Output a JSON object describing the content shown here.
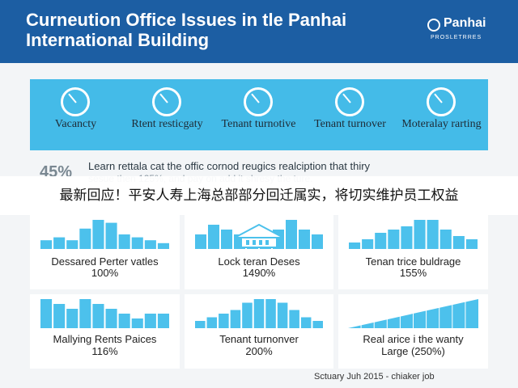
{
  "header": {
    "title": "Curneution Office Issues in tle Panhai International Building",
    "logo_brand": "Panhai",
    "logo_sub": "PROSLETRRES"
  },
  "stats": [
    {
      "label": "Vacancty",
      "icon": "pie-chart-icon"
    },
    {
      "label": "Rtent resticgaty",
      "icon": "pie-chart-icon"
    },
    {
      "label": "Tenant turnotive",
      "icon": "pie-chart-icon"
    },
    {
      "label": "Tenant turnover",
      "icon": "pie-chart-icon"
    },
    {
      "label": "Moteralay rarting",
      "icon": "pie-chart-icon"
    }
  ],
  "overview": {
    "percent": "45%",
    "line1": "Learn rettala cat the offic cornod reugics realciption that thiry",
    "line2": "sesue then 125%, and pay on add it shresy the ture."
  },
  "banner": "最新回应！平安人寿上海总部部分回迁属实，将切实维护员工权益",
  "panels": [
    {
      "title": "Dessared Perter vatles",
      "value": "100%"
    },
    {
      "title": "Lock teran Deses",
      "value": "1490%"
    },
    {
      "title": "Tenan trice buldrage",
      "value": "155%"
    },
    {
      "title": "Mallying Rents Paices",
      "value": "116%"
    },
    {
      "title": "Tenant turnonver",
      "value": "200%"
    },
    {
      "title": "Real arice i the wanty",
      "value": "Large (250%)"
    }
  ],
  "footer": "Sctuary Juh 2015 - chiaker job",
  "colors": {
    "header": "#1c5ea3",
    "accent": "#44bbe8",
    "bar": "#4cc1ec"
  },
  "chart_data": [
    {
      "type": "bar",
      "values": [
        3,
        4,
        3,
        7,
        10,
        9,
        5,
        4,
        3,
        2
      ]
    },
    {
      "type": "bar",
      "values": [
        3,
        5,
        4,
        3,
        2,
        3,
        4,
        6,
        4,
        3
      ]
    },
    {
      "type": "bar",
      "values": [
        2,
        3,
        5,
        6,
        7,
        9,
        9,
        6,
        4,
        3
      ]
    },
    {
      "type": "bar",
      "values": [
        6,
        5,
        4,
        6,
        5,
        4,
        3,
        2,
        3,
        3
      ]
    },
    {
      "type": "bar",
      "values": [
        2,
        3,
        4,
        5,
        7,
        8,
        8,
        7,
        5,
        3,
        2
      ]
    },
    {
      "type": "area",
      "values": [
        0,
        10
      ]
    }
  ]
}
